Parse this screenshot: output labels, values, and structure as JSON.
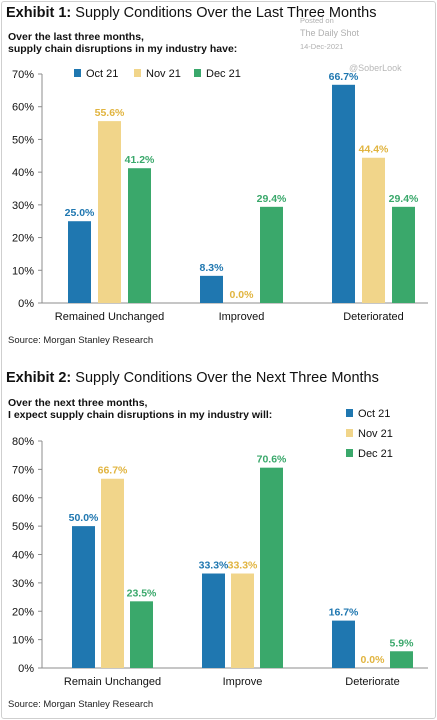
{
  "colors": {
    "oct21": "#1f77b0",
    "nov21": "#f1d58a",
    "dec21": "#3aa86b",
    "nov_label": "#e1b43f",
    "oct_label": "#1f77b0",
    "dec_label": "#3aa86b",
    "axis": "#8c8c8c"
  },
  "watermark": {
    "posted_on": "Posted on",
    "site": "The Daily Shot",
    "date": "14-Dec-2021",
    "handle": "@SoberLook"
  },
  "exhibit1": {
    "title_bold": "Exhibit 1:",
    "title_rest": "Supply Conditions Over the Last Three Months",
    "subtitle_line1": "Over the last three months,",
    "subtitle_line2": "supply chain disruptions in my industry have:",
    "source": "Source: Morgan Stanley Research"
  },
  "exhibit2": {
    "title_bold": "Exhibit 2:",
    "title_rest": "Supply Conditions Over the Next Three Months",
    "subtitle_line1": "Over the next three months,",
    "subtitle_line2": "I expect supply chain disruptions in my industry will:",
    "source": "Source: Morgan Stanley Research"
  },
  "chart_data": [
    {
      "type": "bar",
      "categories": [
        "Remained Unchanged",
        "Improved",
        "Deteriorated"
      ],
      "series": [
        {
          "name": "Oct 21",
          "values": [
            25.0,
            8.3,
            66.7
          ]
        },
        {
          "name": "Nov 21",
          "values": [
            55.6,
            0.0,
            44.4
          ]
        },
        {
          "name": "Dec 21",
          "values": [
            41.2,
            29.4,
            29.4
          ]
        }
      ],
      "data_labels": [
        [
          "25.0%",
          "8.3%",
          "66.7%"
        ],
        [
          "55.6%",
          "0.0%",
          "44.4%"
        ],
        [
          "41.2%",
          "29.4%",
          "29.4%"
        ]
      ],
      "yticks": [
        "0%",
        "10%",
        "20%",
        "30%",
        "40%",
        "50%",
        "60%",
        "70%"
      ],
      "ylim": [
        0,
        70
      ],
      "legend": "top, horizontal",
      "grid": false
    },
    {
      "type": "bar",
      "categories": [
        "Remain Unchanged",
        "Improve",
        "Deteriorate"
      ],
      "series": [
        {
          "name": "Oct 21",
          "values": [
            50.0,
            33.3,
            16.7
          ]
        },
        {
          "name": "Nov 21",
          "values": [
            66.7,
            33.3,
            0.0
          ]
        },
        {
          "name": "Dec 21",
          "values": [
            23.5,
            70.6,
            5.9
          ]
        }
      ],
      "data_labels": [
        [
          "50.0%",
          "33.3%",
          "16.7%"
        ],
        [
          "66.7%",
          "33.3%",
          "0.0%"
        ],
        [
          "23.5%",
          "70.6%",
          "5.9%"
        ]
      ],
      "yticks": [
        "0%",
        "10%",
        "20%",
        "30%",
        "40%",
        "50%",
        "60%",
        "70%",
        "80%"
      ],
      "ylim": [
        0,
        80
      ],
      "legend": "right, vertical",
      "grid": false
    }
  ]
}
